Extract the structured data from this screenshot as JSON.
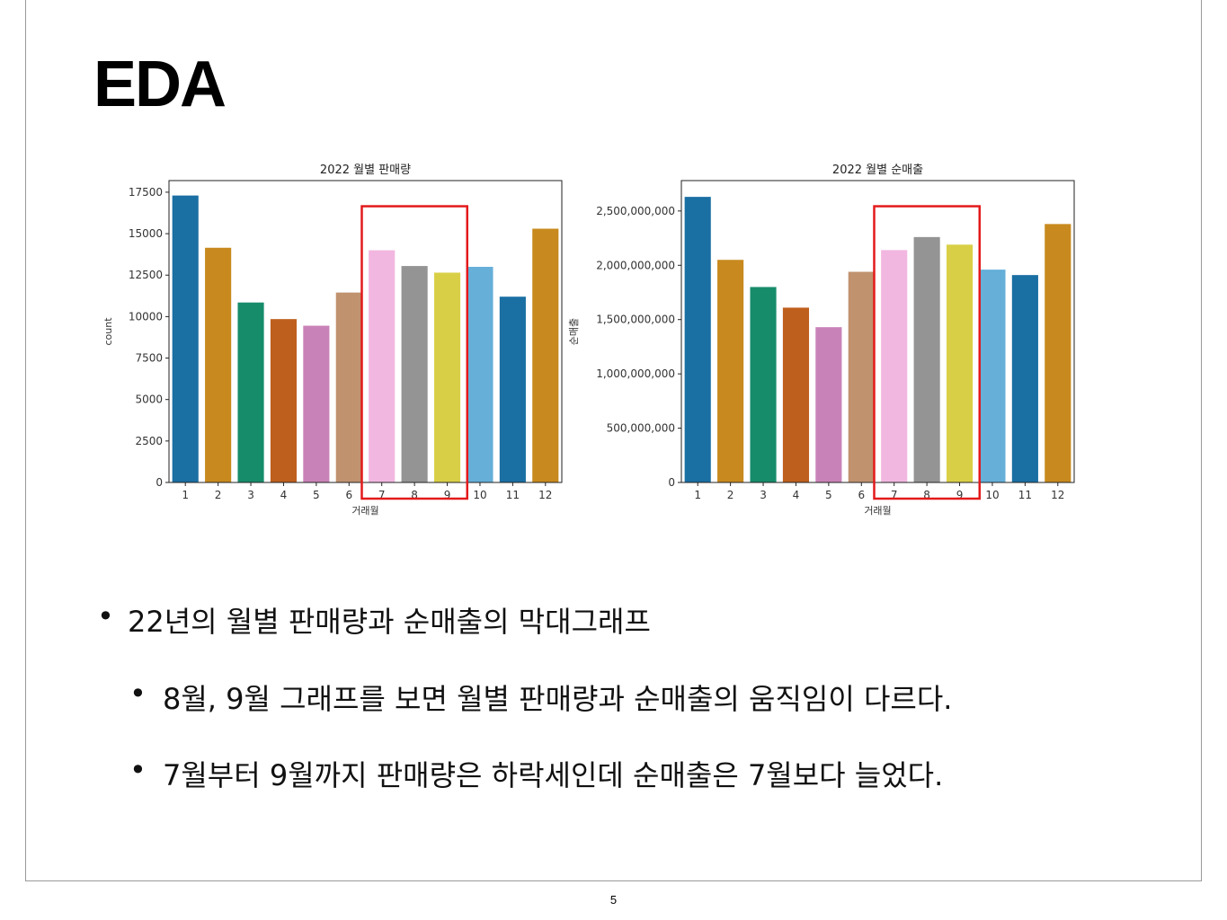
{
  "slide": {
    "title": "EDA",
    "page_number": "5"
  },
  "bullets": [
    {
      "level": 1,
      "text": "22년의 월별 판매량과 순매출의 막대그래프"
    },
    {
      "level": 2,
      "text": "8월, 9월 그래프를 보면 월별 판매량과 순매출의 움직임이 다르다."
    },
    {
      "level": 2,
      "text": "7월부터 9월까지 판매량은 하락세인데 순매출은 7월보다 늘었다."
    }
  ],
  "bullet_glyph": "•",
  "colors": {
    "highlight": "#e31a1c",
    "palette": [
      "#1a6fa3",
      "#c88a1e",
      "#178c6b",
      "#bf5f1e",
      "#c982b8",
      "#c0926e",
      "#f2b7e0",
      "#949494",
      "#d9cf47",
      "#65afd9",
      "#1a6fa3",
      "#c88a1e"
    ]
  },
  "chart_data": [
    {
      "type": "bar",
      "title": "2022 월별 판매량",
      "xlabel": "거래월",
      "ylabel": "count",
      "categories": [
        "1",
        "2",
        "3",
        "4",
        "5",
        "6",
        "7",
        "8",
        "9",
        "10",
        "11",
        "12"
      ],
      "values": [
        17300,
        14150,
        10850,
        9850,
        9450,
        11450,
        14000,
        13050,
        12650,
        13000,
        11200,
        15300
      ],
      "ylim": [
        0,
        18200
      ],
      "yticks": [
        0,
        2500,
        5000,
        7500,
        10000,
        12500,
        15000,
        17500
      ],
      "ytick_labels": [
        "0",
        "2500",
        "5000",
        "7500",
        "10000",
        "12500",
        "15000",
        "17500"
      ],
      "highlight_categories": [
        "7",
        "8",
        "9"
      ],
      "grid": false,
      "legend": "none"
    },
    {
      "type": "bar",
      "title": "2022 월별 순매출",
      "xlabel": "거래월",
      "ylabel": "순매출",
      "categories": [
        "1",
        "2",
        "3",
        "4",
        "5",
        "6",
        "7",
        "8",
        "9",
        "10",
        "11",
        "12"
      ],
      "values": [
        2630000000,
        2050000000,
        1800000000,
        1610000000,
        1430000000,
        1940000000,
        2140000000,
        2260000000,
        2190000000,
        1960000000,
        1910000000,
        2380000000
      ],
      "ylim": [
        0,
        2780000000
      ],
      "yticks": [
        0,
        500000000,
        1000000000,
        1500000000,
        2000000000,
        2500000000
      ],
      "ytick_labels": [
        "0",
        "500,000,000",
        "1,000,000,000",
        "1,500,000,000",
        "2,000,000,000",
        "2,500,000,000"
      ],
      "highlight_categories": [
        "7",
        "8",
        "9"
      ],
      "grid": false,
      "legend": "none"
    }
  ]
}
